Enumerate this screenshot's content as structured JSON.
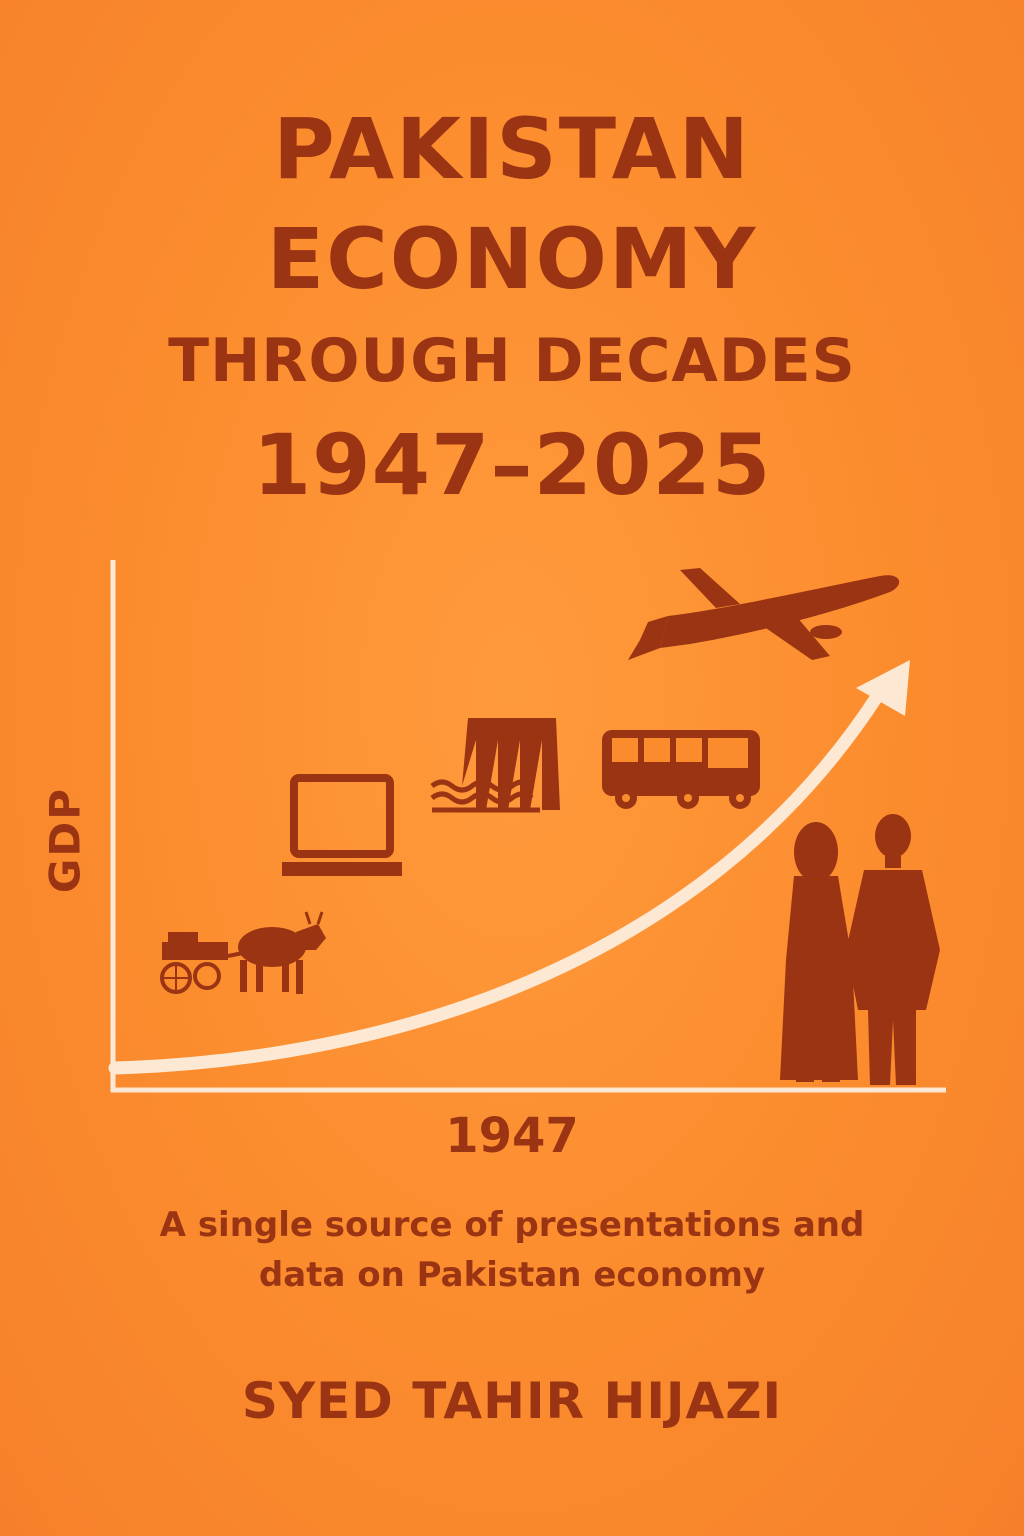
{
  "cover": {
    "title_line1": "PAKISTAN",
    "title_line2": "ECONOMY",
    "title_line3": "THROUGH DECADES",
    "title_line4": "1947–2025",
    "subtitle_line1": "A single source of presentations and",
    "subtitle_line2": "data on Pakistan economy",
    "author": "SYED TAHIR HIJAZI"
  },
  "chart": {
    "y_label": "GDP",
    "x_label": "1947"
  },
  "icons": [
    "ox-cart-icon",
    "laptop-icon",
    "dam-icon",
    "bus-icon",
    "airplane-icon",
    "woman-figure-icon",
    "man-figure-icon"
  ],
  "colors": {
    "background": "#fb8c2e",
    "ink": "#9a3412",
    "arrow": "#fde8d4"
  }
}
